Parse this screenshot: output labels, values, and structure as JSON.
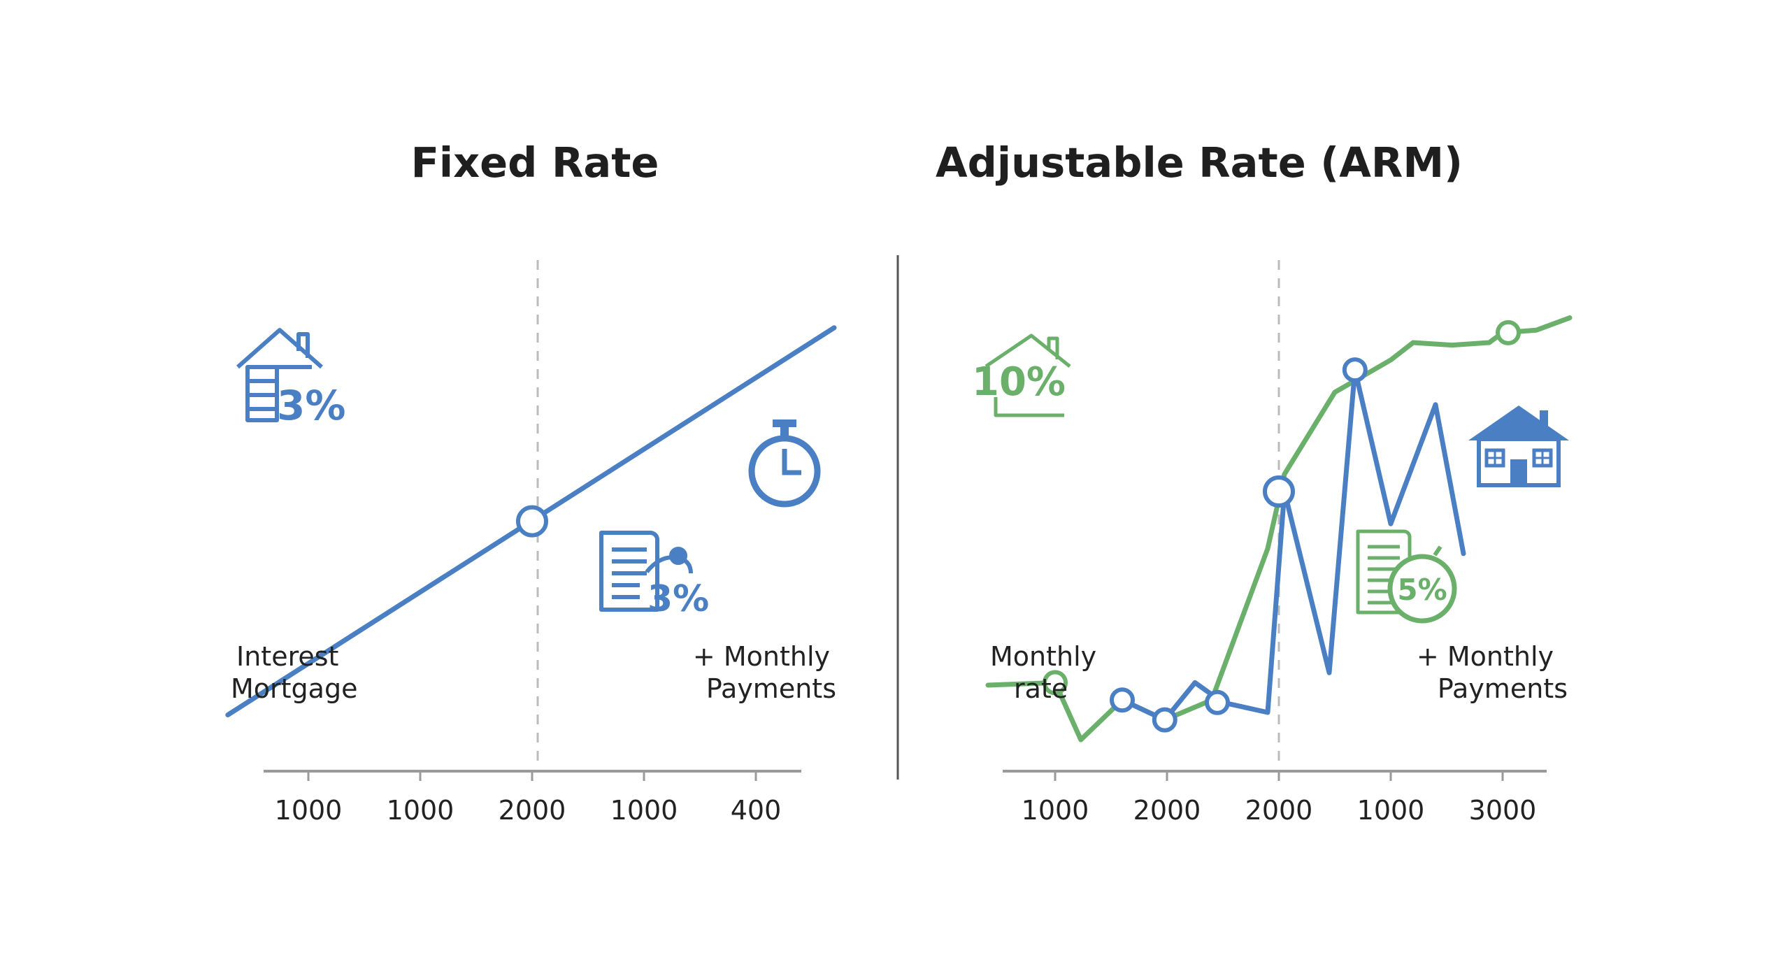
{
  "colors": {
    "blue": "#4a80c3",
    "green": "#6ab06a",
    "axis": "#9a9a9a",
    "divider": "#555555",
    "guide": "#bbbbbb"
  },
  "chart_data": [
    {
      "type": "line",
      "title": "Fixed Rate",
      "x_tick_labels": [
        "1000",
        "1000",
        "2000",
        "1000",
        "400"
      ],
      "xlim": [
        0,
        4.9
      ],
      "ylim": [
        0,
        1
      ],
      "series": [
        {
          "color": "#4a80c3",
          "x": [
            -0.72,
            4.7
          ],
          "y": [
            0.095,
            0.875
          ]
        }
      ],
      "markers": [
        {
          "x": 2.0,
          "y": 0.485
        }
      ],
      "guide_x": 2.0,
      "labels": {
        "left": [
          "Interest",
          "Mortgage"
        ],
        "right": [
          "+ Monthly",
          "Payments"
        ]
      },
      "badges": {
        "house_percent": "3%",
        "document_percent": "3%"
      },
      "icons": [
        "house-document-icon",
        "document-stamp-icon",
        "stopwatch-icon"
      ]
    },
    {
      "type": "line",
      "title": "Adjustable Rate (ARM)",
      "x_tick_labels": [
        "1000",
        "2000",
        "2000",
        "1000",
        "3000"
      ],
      "xlim": [
        0,
        4.9
      ],
      "ylim": [
        0,
        1
      ],
      "series": [
        {
          "color": "#6ab06a",
          "x": [
            -0.6,
            0.0,
            0.23,
            0.6,
            0.98,
            1.4,
            1.9,
            2.05,
            2.5,
            3.0,
            3.2,
            3.55,
            3.88,
            4.0,
            4.3,
            4.6
          ],
          "y": [
            0.155,
            0.16,
            0.045,
            0.125,
            0.085,
            0.125,
            0.43,
            0.58,
            0.745,
            0.81,
            0.845,
            0.84,
            0.845,
            0.865,
            0.87,
            0.895
          ]
        },
        {
          "color": "#4a80c3",
          "x": [
            0.0,
            0.6,
            0.8,
            0.98,
            1.25,
            1.5,
            1.9,
            2.05,
            2.55,
            3.0,
            3.05,
            3.5,
            3.0,
            3.5
          ],
          "y": [
            0.16,
            0.125,
            0.145,
            0.085,
            0.16,
            0.12,
            0.52,
            0.48,
            0.17,
            0.79,
            0.79,
            0.45,
            0.79,
            0.45
          ],
          "points_x": [
            0.6,
            0.98,
            1.25,
            1.5,
            1.9,
            2.05,
            2.45,
            2.68,
            3.0,
            3.4,
            3.65
          ],
          "points_y": [
            0.125,
            0.085,
            0.16,
            0.12,
            0.1,
            0.545,
            0.18,
            0.79,
            0.48,
            0.72,
            0.42
          ]
        }
      ],
      "markers": [
        {
          "x": 0.0,
          "y": 0.16,
          "color": "#6ab06a"
        },
        {
          "x": 0.6,
          "y": 0.125,
          "color": "#4a80c3"
        },
        {
          "x": 0.98,
          "y": 0.085,
          "color": "#4a80c3"
        },
        {
          "x": 1.45,
          "y": 0.12,
          "color": "#4a80c3"
        },
        {
          "x": 2.0,
          "y": 0.545,
          "color": "#4a80c3"
        },
        {
          "x": 2.68,
          "y": 0.79,
          "color": "#4a80c3"
        },
        {
          "x": 4.05,
          "y": 0.865,
          "color": "#6ab06a"
        }
      ],
      "guide_x": 2.0,
      "labels": {
        "left": [
          "Monthly",
          "rate"
        ],
        "right": [
          "+ Monthly",
          "Payments"
        ]
      },
      "badges": {
        "house_percent": "10%",
        "clock_percent": "5%"
      },
      "icons": [
        "house-outline-icon",
        "house-solid-icon",
        "document-clock-icon"
      ]
    }
  ]
}
